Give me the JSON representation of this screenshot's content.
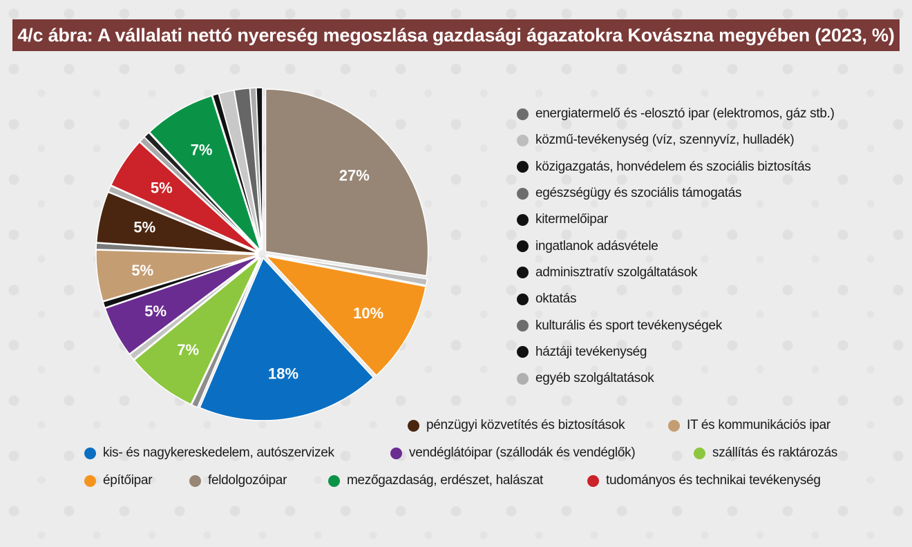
{
  "title": "4/c ábra: A vállalati nettó nyereség megoszlása gazdasági ágazatokra Kovászna megyében (2023, %)",
  "chart_data": {
    "type": "pie",
    "title": "4/c ábra: A vállalati nettó nyereség megoszlása gazdasági ágazatokra Kovászna megyében (2023, %)",
    "unit": "%",
    "slices": [
      {
        "name": "feldolgozóipar",
        "value": 27,
        "label": "27%",
        "color": "#978675"
      },
      {
        "name": "egyéb szolgáltatások",
        "value": 0.6,
        "label": "",
        "color": "#bdbdbd"
      },
      {
        "name": "építőipar",
        "value": 10,
        "label": "10%",
        "color": "#f5941d"
      },
      {
        "name": "kis- és nagykereskedelem, autószervizek",
        "value": 18,
        "label": "18%",
        "color": "#0a6fc2"
      },
      {
        "name": "kulturális és sport tevékenységek",
        "value": 0.6,
        "label": "",
        "color": "#8d8d8d"
      },
      {
        "name": "szállítás és raktározás",
        "value": 7,
        "label": "7%",
        "color": "#8dc63f"
      },
      {
        "name": "közmű-tevékenység (víz, szennyvíz, hulladék)",
        "value": 0.6,
        "label": "",
        "color": "#c4c4c4"
      },
      {
        "name": "vendéglátóipar (szállodák és vendéglők)",
        "value": 5,
        "label": "5%",
        "color": "#6a2c91"
      },
      {
        "name": "oktatás",
        "value": 0.6,
        "label": "",
        "color": "#111111"
      },
      {
        "name": "IT és kommunikációs ipar",
        "value": 5,
        "label": "5%",
        "color": "#c59d72"
      },
      {
        "name": "egészségügy és szociális támogatás",
        "value": 0.6,
        "label": "",
        "color": "#7a7a7a"
      },
      {
        "name": "pénzügyi közvetítés és biztosítások",
        "value": 5,
        "label": "5%",
        "color": "#4a2610"
      },
      {
        "name": "ingatlanok adásvétele",
        "value": 0.6,
        "label": "",
        "color": "#b5b5b5"
      },
      {
        "name": "tudományos és technikai tevékenység",
        "value": 5,
        "label": "5%",
        "color": "#cc2229"
      },
      {
        "name": "kitermelőipar",
        "value": 0.6,
        "label": "",
        "color": "#aaaaaa"
      },
      {
        "name": "háztáji tevékenység",
        "value": 0.6,
        "label": "",
        "color": "#222222"
      },
      {
        "name": "mezőgazdaság, erdészet, halászat",
        "value": 7,
        "label": "7%",
        "color": "#0a9347"
      },
      {
        "name": "közigazgatás, honvédelem és szociális biztosítás",
        "value": 0.6,
        "label": "",
        "color": "#111111"
      },
      {
        "name": "energiatermelő és -elosztó ipar (elektromos, gáz stb.)",
        "value": 1.5,
        "label": "",
        "color": "#c8c8c8"
      },
      {
        "name": "adminisztratív szolgáltatások",
        "value": 1.5,
        "label": "",
        "color": "#666666"
      },
      {
        "name": "energiatermelő és -elosztó ipar (elektromos, gáz stb.)",
        "value": 0.6,
        "label": "",
        "color": "#aaaaaa"
      },
      {
        "name": "közigazgatás, honvédelem és szociális biztosítás",
        "value": 0.6,
        "label": "",
        "color": "#111111"
      }
    ]
  },
  "legend_right": [
    {
      "label": "energiatermelő és -elosztó ipar (elektromos, gáz stb.)",
      "color": "#6d6d6d"
    },
    {
      "label": "közmű-tevékenység (víz, szennyvíz, hulladék)",
      "color": "#bdbdbd"
    },
    {
      "label": "közigazgatás, honvédelem és szociális biztosítás",
      "color": "#111111"
    },
    {
      "label": "egészségügy és szociális támogatás",
      "color": "#6d6d6d"
    },
    {
      "label": "kitermelőipar",
      "color": "#111111"
    },
    {
      "label": "ingatlanok adásvétele",
      "color": "#111111"
    },
    {
      "label": "adminisztratív szolgáltatások",
      "color": "#111111"
    },
    {
      "label": "oktatás",
      "color": "#111111"
    },
    {
      "label": "kulturális és sport tevékenységek",
      "color": "#6d6d6d"
    },
    {
      "label": "háztáji tevékenység",
      "color": "#111111"
    },
    {
      "label": "egyéb szolgáltatások",
      "color": "#b0b0b0"
    }
  ],
  "legend_bottom": [
    {
      "label": "pénzügyi közvetítés és biztosítások",
      "color": "#4a2610"
    },
    {
      "label": "IT és kommunikációs ipar",
      "color": "#c59d72"
    },
    {
      "label": "kis- és nagykereskedelem, autószervizek",
      "color": "#0a6fc2"
    },
    {
      "label": "vendéglátóipar (szállodák és vendéglők)",
      "color": "#6a2c91"
    },
    {
      "label": "szállítás és raktározás",
      "color": "#8dc63f"
    },
    {
      "label": "építőipar",
      "color": "#f5941d"
    },
    {
      "label": "feldolgozóipar",
      "color": "#978675"
    },
    {
      "label": "mezőgazdaság, erdészet, halászat",
      "color": "#0a9347"
    },
    {
      "label": "tudományos és technikai tevékenység",
      "color": "#cc2229"
    }
  ]
}
